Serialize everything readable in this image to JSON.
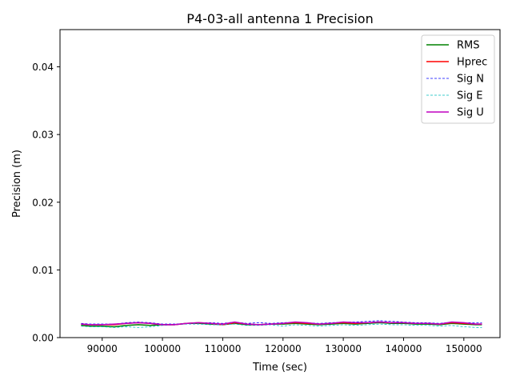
{
  "chart_data": {
    "type": "line",
    "title": "P4-03-all antenna 1 Precision",
    "xlabel": "Time (sec)",
    "ylabel": "Precision (m)",
    "xlim": [
      83000,
      156000
    ],
    "ylim": [
      0.0,
      0.0455
    ],
    "xticks": [
      90000,
      100000,
      110000,
      120000,
      130000,
      140000,
      150000
    ],
    "xtick_labels": [
      "90000",
      "100000",
      "110000",
      "120000",
      "130000",
      "140000",
      "150000"
    ],
    "yticks": [
      0.0,
      0.01,
      0.02,
      0.03,
      0.04
    ],
    "ytick_labels": [
      "0.00",
      "0.01",
      "0.02",
      "0.03",
      "0.04"
    ],
    "grid": false,
    "legend_position": "top-right",
    "x": [
      86500,
      88000,
      90000,
      92000,
      94000,
      96000,
      98000,
      100000,
      102000,
      104000,
      106000,
      108000,
      110000,
      112000,
      114000,
      116000,
      118000,
      120000,
      122000,
      124000,
      126000,
      128000,
      130000,
      132000,
      134000,
      136000,
      138000,
      140000,
      142000,
      144000,
      146000,
      148000,
      150000,
      152000,
      153000
    ],
    "series": [
      {
        "name": "RMS",
        "color": "#008000",
        "style": "solid",
        "values": [
          0.0018,
          0.0017,
          0.0017,
          0.0016,
          0.0018,
          0.0019,
          0.0018,
          0.0019,
          0.0019,
          0.0021,
          0.0021,
          0.002,
          0.0019,
          0.0021,
          0.0019,
          0.0019,
          0.002,
          0.002,
          0.0021,
          0.002,
          0.0019,
          0.002,
          0.0021,
          0.002,
          0.0021,
          0.0022,
          0.0021,
          0.0021,
          0.002,
          0.002,
          0.0019,
          0.0021,
          0.002,
          0.0019,
          0.0019
        ]
      },
      {
        "name": "Hprec",
        "color": "#ff0000",
        "style": "solid",
        "values": [
          0.002,
          0.0019,
          0.0019,
          0.0019,
          0.0021,
          0.0022,
          0.0021,
          0.0019,
          0.0019,
          0.0021,
          0.0022,
          0.0021,
          0.0019,
          0.0022,
          0.002,
          0.0019,
          0.002,
          0.0021,
          0.0022,
          0.0021,
          0.002,
          0.0021,
          0.0022,
          0.0021,
          0.0022,
          0.0023,
          0.0022,
          0.0022,
          0.0021,
          0.0021,
          0.002,
          0.0022,
          0.0021,
          0.002,
          0.002
        ]
      },
      {
        "name": "Sig N",
        "color": "#0000ff",
        "style": "dashed",
        "values": [
          0.0021,
          0.002,
          0.002,
          0.002,
          0.0022,
          0.0023,
          0.0022,
          0.002,
          0.002,
          0.0021,
          0.0022,
          0.0022,
          0.0021,
          0.0023,
          0.0021,
          0.0022,
          0.0021,
          0.0022,
          0.0023,
          0.0022,
          0.0021,
          0.0022,
          0.0023,
          0.0023,
          0.0024,
          0.0025,
          0.0024,
          0.0023,
          0.0022,
          0.0022,
          0.0021,
          0.0023,
          0.0022,
          0.0022,
          0.0022
        ]
      },
      {
        "name": "Sig E",
        "color": "#00bfbf",
        "style": "dashed",
        "values": [
          0.0017,
          0.0016,
          0.0016,
          0.0015,
          0.0016,
          0.0015,
          0.0016,
          0.0018,
          0.0019,
          0.002,
          0.002,
          0.0019,
          0.0019,
          0.002,
          0.0018,
          0.0018,
          0.0019,
          0.0017,
          0.0019,
          0.0018,
          0.0017,
          0.0018,
          0.0019,
          0.0018,
          0.0019,
          0.002,
          0.0019,
          0.0019,
          0.0018,
          0.0018,
          0.0017,
          0.0018,
          0.0016,
          0.0015,
          0.0015
        ]
      },
      {
        "name": "Sig U",
        "color": "#bf00bf",
        "style": "solid",
        "values": [
          0.002,
          0.0019,
          0.0019,
          0.002,
          0.0021,
          0.0022,
          0.0021,
          0.0019,
          0.0019,
          0.0021,
          0.0022,
          0.0021,
          0.002,
          0.0023,
          0.002,
          0.0019,
          0.002,
          0.0021,
          0.0023,
          0.0022,
          0.002,
          0.0021,
          0.0023,
          0.0022,
          0.0022,
          0.0023,
          0.0022,
          0.0022,
          0.0021,
          0.0021,
          0.002,
          0.0023,
          0.0022,
          0.002,
          0.002
        ]
      }
    ]
  }
}
